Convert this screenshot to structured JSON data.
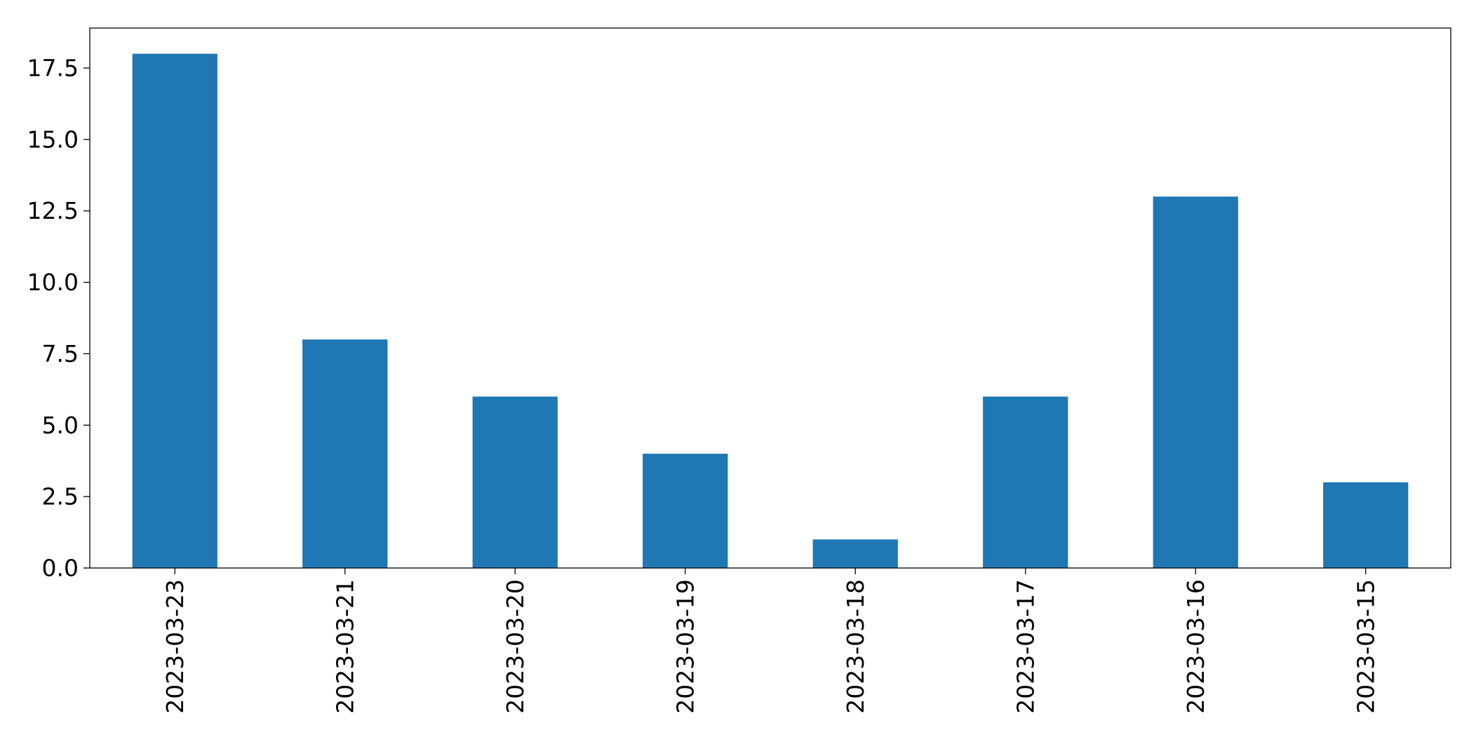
{
  "chart_data": {
    "type": "bar",
    "title": "",
    "xlabel": "",
    "ylabel": "",
    "categories": [
      "2023-03-23",
      "2023-03-21",
      "2023-03-20",
      "2023-03-19",
      "2023-03-18",
      "2023-03-17",
      "2023-03-16",
      "2023-03-15"
    ],
    "values": [
      18,
      8,
      6,
      4,
      1,
      6,
      13,
      3
    ],
    "ylim": [
      0,
      18.9
    ],
    "yticks": [
      "0.0",
      "2.5",
      "5.0",
      "7.5",
      "10.0",
      "12.5",
      "15.0",
      "17.5"
    ],
    "ytick_values": [
      0,
      2.5,
      5,
      7.5,
      10,
      12.5,
      15,
      17.5
    ],
    "bar_color": "#1f77b4",
    "grid": false,
    "legend": "none"
  }
}
